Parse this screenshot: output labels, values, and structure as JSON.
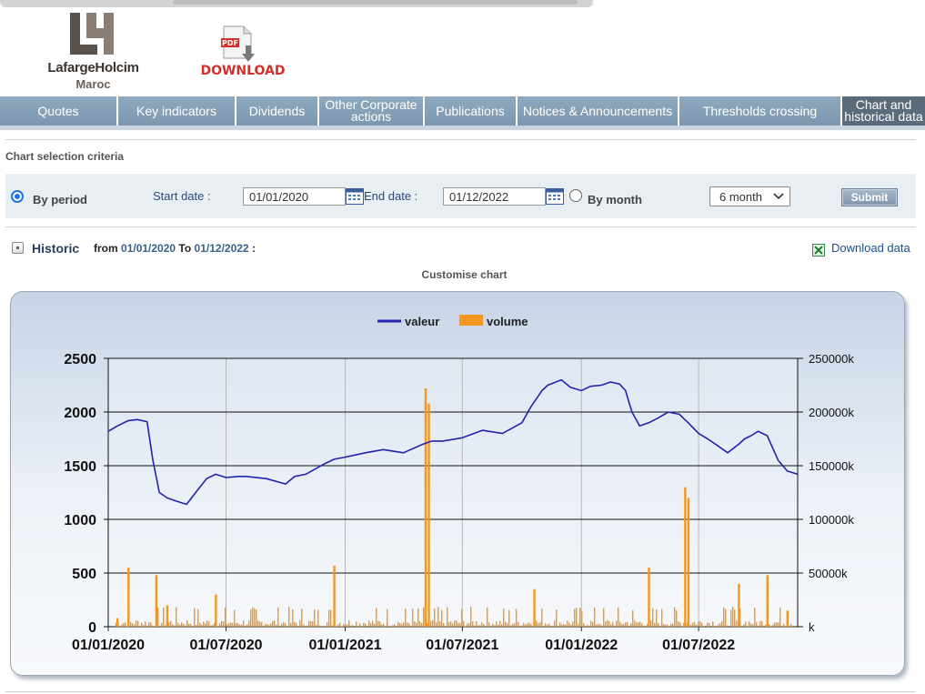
{
  "header": {
    "logo": {
      "name": "LafargeHolcim",
      "sub": "Maroc"
    },
    "pdf": {
      "badge": "PDF",
      "label": "DOWNLOAD"
    }
  },
  "tabs": [
    {
      "label": "Quotes",
      "active": false
    },
    {
      "label": "Key indicators",
      "active": false
    },
    {
      "label": "Dividends",
      "active": false
    },
    {
      "label": "Other Corporate actions",
      "active": false
    },
    {
      "label": "Publications",
      "active": false
    },
    {
      "label": "Notices & Announcements",
      "active": false
    },
    {
      "label": "Thresholds crossing",
      "active": false
    },
    {
      "label": "Chart and historical data",
      "active": true
    }
  ],
  "criteria": {
    "title": "Chart selection criteria",
    "by_period_label": "By period",
    "by_period_checked": true,
    "start_label": "Start date :",
    "start_value": "01/01/2020",
    "end_label": "End date :",
    "end_value": "01/12/2022",
    "by_month_label": "By month",
    "by_month_checked": false,
    "month_select": "6 month",
    "submit_label": "Submit"
  },
  "historic": {
    "label": "Historic",
    "from_label": "from",
    "from_value": "01/01/2020",
    "to_label": "To",
    "to_value": "01/12/2022",
    "colon": ":",
    "download_label": "Download data",
    "customise_label": "Customise chart"
  },
  "colors": {
    "valeur": "#2323b0",
    "volume": "#f5961e",
    "tab": "#8aa3ba",
    "tab_active": "#5a6b7c"
  },
  "chart_data": {
    "type": "line",
    "legend": [
      "valeur",
      "volume"
    ],
    "legend_position": "top-center",
    "x_ticks": [
      "01/01/2020",
      "01/07/2020",
      "01/01/2021",
      "01/07/2021",
      "01/01/2022",
      "01/07/2022"
    ],
    "y_left": {
      "ticks": [
        "0",
        "500",
        "1000",
        "1500",
        "2000",
        "2500"
      ],
      "range": [
        0,
        2500
      ]
    },
    "y_right": {
      "ticks": [
        "k",
        "50000k",
        "100000k",
        "150000k",
        "200000k",
        "250000k"
      ],
      "range": [
        0,
        250000
      ]
    },
    "x_range": [
      "2020-01-01",
      "2022-12-01"
    ],
    "series": [
      {
        "name": "valeur",
        "x": [
          "2020-01-01",
          "2020-01-15",
          "2020-02-01",
          "2020-02-15",
          "2020-03-01",
          "2020-03-10",
          "2020-03-20",
          "2020-04-01",
          "2020-04-15",
          "2020-05-01",
          "2020-05-15",
          "2020-06-01",
          "2020-06-15",
          "2020-07-01",
          "2020-07-20",
          "2020-08-01",
          "2020-09-01",
          "2020-10-01",
          "2020-10-15",
          "2020-11-01",
          "2020-12-01",
          "2020-12-15",
          "2021-01-01",
          "2021-02-01",
          "2021-03-01",
          "2021-04-01",
          "2021-05-01",
          "2021-05-15",
          "2021-06-01",
          "2021-07-01",
          "2021-08-01",
          "2021-09-01",
          "2021-10-01",
          "2021-10-15",
          "2021-11-01",
          "2021-11-10",
          "2021-12-01",
          "2021-12-15",
          "2022-01-01",
          "2022-01-15",
          "2022-02-01",
          "2022-02-15",
          "2022-03-01",
          "2022-03-10",
          "2022-03-20",
          "2022-04-01",
          "2022-04-15",
          "2022-05-01",
          "2022-05-15",
          "2022-06-01",
          "2022-06-15",
          "2022-07-01",
          "2022-07-15",
          "2022-08-01",
          "2022-08-15",
          "2022-09-01",
          "2022-09-10",
          "2022-09-20",
          "2022-10-01",
          "2022-10-15",
          "2022-11-01",
          "2022-11-15",
          "2022-12-01"
        ],
        "values": [
          1820,
          1870,
          1920,
          1930,
          1910,
          1550,
          1250,
          1200,
          1170,
          1140,
          1250,
          1380,
          1420,
          1390,
          1400,
          1400,
          1380,
          1330,
          1400,
          1420,
          1520,
          1560,
          1580,
          1620,
          1650,
          1620,
          1700,
          1730,
          1730,
          1760,
          1830,
          1800,
          1900,
          2050,
          2200,
          2250,
          2300,
          2230,
          2200,
          2240,
          2250,
          2280,
          2260,
          2200,
          2000,
          1870,
          1900,
          1950,
          2000,
          1980,
          1900,
          1800,
          1750,
          1680,
          1620,
          1700,
          1750,
          1780,
          1820,
          1780,
          1550,
          1450,
          1420
        ]
      },
      {
        "name": "volume",
        "x": [
          "2020-01-15",
          "2020-02-01",
          "2020-03-15",
          "2020-04-01",
          "2020-06-15",
          "2020-12-15",
          "2021-05-05",
          "2021-05-10",
          "2021-10-20",
          "2022-04-15",
          "2022-06-10",
          "2022-06-15",
          "2022-09-01",
          "2022-10-15",
          "2022-11-15"
        ],
        "values": [
          8000,
          55000,
          48000,
          20000,
          30000,
          57000,
          222000,
          208000,
          35000,
          55000,
          130000,
          120000,
          40000,
          48000,
          15000
        ]
      }
    ]
  }
}
